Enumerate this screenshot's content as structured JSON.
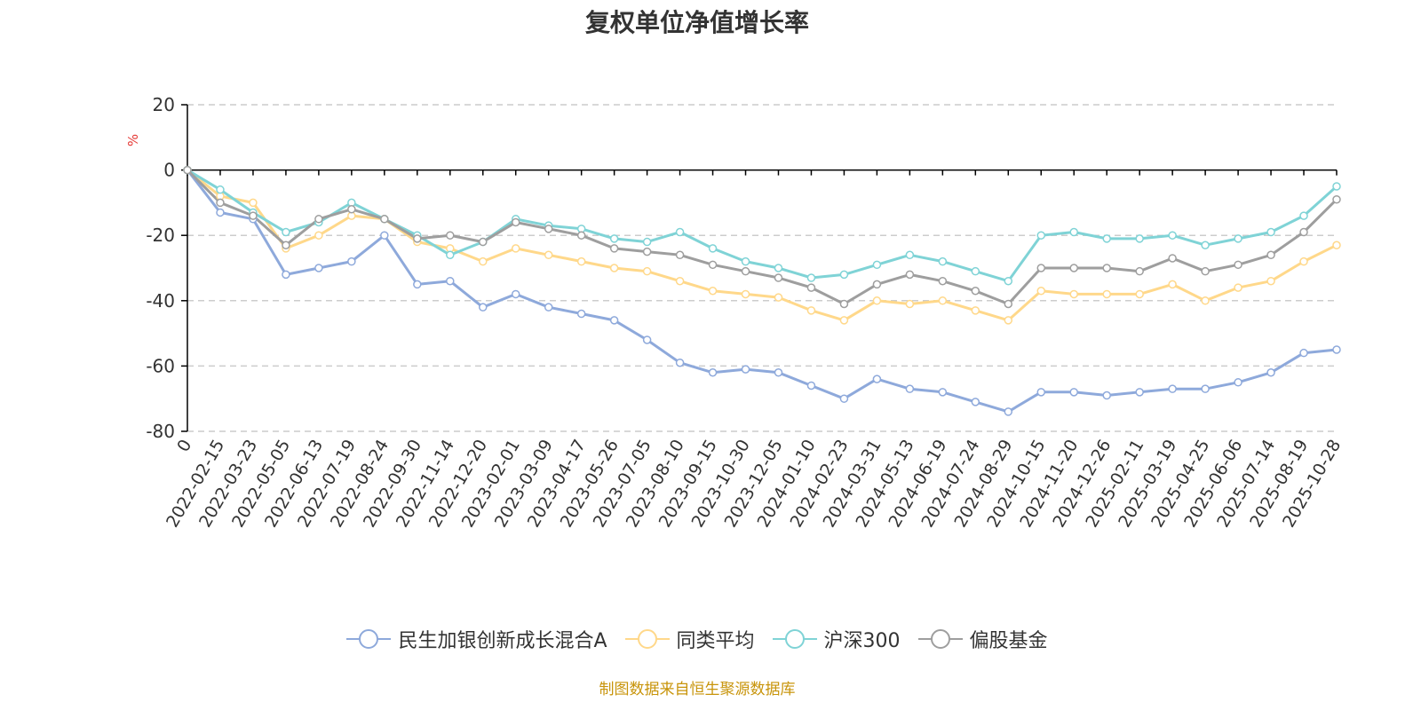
{
  "chart_data": {
    "type": "line",
    "title": "复权单位净值增长率",
    "ylabel": "%",
    "xlabel": "",
    "ylim": [
      -80,
      20
    ],
    "y_ticks": [
      20,
      0,
      -20,
      -40,
      -60,
      -80
    ],
    "grid": true,
    "legend_position": "bottom",
    "x_tick_labels": [
      "0",
      "2022-02-15",
      "2022-03-23",
      "2022-05-05",
      "2022-06-13",
      "2022-07-19",
      "2022-08-24",
      "2022-09-30",
      "2022-11-14",
      "2022-12-20",
      "2023-02-01",
      "2023-03-09",
      "2023-04-17",
      "2023-05-26",
      "2023-07-05",
      "2023-08-10",
      "2023-09-15",
      "2023-10-30",
      "2023-12-05",
      "2024-01-10",
      "2024-02-23",
      "2024-03-31",
      "2024-05-13",
      "2024-06-19",
      "2024-07-24",
      "2024-08-29",
      "2024-10-15",
      "2024-11-20",
      "2024-12-26",
      "2025-02-11",
      "2025-03-19",
      "2025-04-25",
      "2025-06-06",
      "2025-07-14",
      "2025-08-19",
      "2025-10-28"
    ],
    "x": [
      "0",
      "2022-02-15",
      "2022-03-23",
      "2022-05-05",
      "2022-06-13",
      "2022-07-19",
      "2022-08-24",
      "2022-09-30",
      "2022-11-14",
      "2022-12-20",
      "2023-02-01",
      "2023-03-09",
      "2023-04-17",
      "2023-05-26",
      "2023-07-05",
      "2023-08-10",
      "2023-09-15",
      "2023-10-30",
      "2023-12-05",
      "2024-01-10",
      "2024-02-23",
      "2024-03-31",
      "2024-05-13",
      "2024-06-19",
      "2024-07-24",
      "2024-08-29",
      "2024-10-15",
      "2024-11-20",
      "2024-12-26",
      "2025-02-11",
      "2025-03-19",
      "2025-04-25",
      "2025-06-06",
      "2025-07-14",
      "2025-08-19",
      "2025-10-28"
    ],
    "series": [
      {
        "name": "民生加银创新成长混合A",
        "color": "#8ea9db",
        "values": [
          0,
          -13,
          -15,
          -32,
          -30,
          -28,
          -20,
          -35,
          -34,
          -42,
          -38,
          -42,
          -44,
          -46,
          -52,
          -59,
          -62,
          -61,
          -62,
          -66,
          -70,
          -64,
          -67,
          -68,
          -71,
          -74,
          -68,
          -68,
          -69,
          -68,
          -67,
          -67,
          -65,
          -62,
          -56,
          -55
        ]
      },
      {
        "name": "同类平均",
        "color": "#ffd88a",
        "values": [
          0,
          -8,
          -10,
          -24,
          -20,
          -14,
          -15,
          -22,
          -24,
          -28,
          -24,
          -26,
          -28,
          -30,
          -31,
          -34,
          -37,
          -38,
          -39,
          -43,
          -46,
          -40,
          -41,
          -40,
          -43,
          -46,
          -37,
          -38,
          -38,
          -38,
          -35,
          -40,
          -36,
          -34,
          -28,
          -23
        ]
      },
      {
        "name": "沪深300",
        "color": "#7fd3d6",
        "values": [
          0,
          -6,
          -13,
          -19,
          -16,
          -10,
          -15,
          -20,
          -26,
          -22,
          -15,
          -17,
          -18,
          -21,
          -22,
          -19,
          -24,
          -28,
          -30,
          -33,
          -32,
          -29,
          -26,
          -28,
          -31,
          -34,
          -20,
          -19,
          -21,
          -21,
          -20,
          -23,
          -21,
          -19,
          -14,
          -5
        ]
      },
      {
        "name": "偏股基金",
        "color": "#9e9e9e",
        "values": [
          0,
          -10,
          -14,
          -23,
          -15,
          -12,
          -15,
          -21,
          -20,
          -22,
          -16,
          -18,
          -20,
          -24,
          -25,
          -26,
          -29,
          -31,
          -33,
          -36,
          -41,
          -35,
          -32,
          -34,
          -37,
          -41,
          -30,
          -30,
          -30,
          -31,
          -27,
          -31,
          -29,
          -26,
          -19,
          -9
        ]
      }
    ]
  },
  "source_note": "制图数据来自恒生聚源数据库",
  "colors": {
    "title": "#333333",
    "source_note": "#c8940a",
    "ylabel": "#e53935",
    "grid": "#cccccc",
    "axis": "#000000"
  }
}
